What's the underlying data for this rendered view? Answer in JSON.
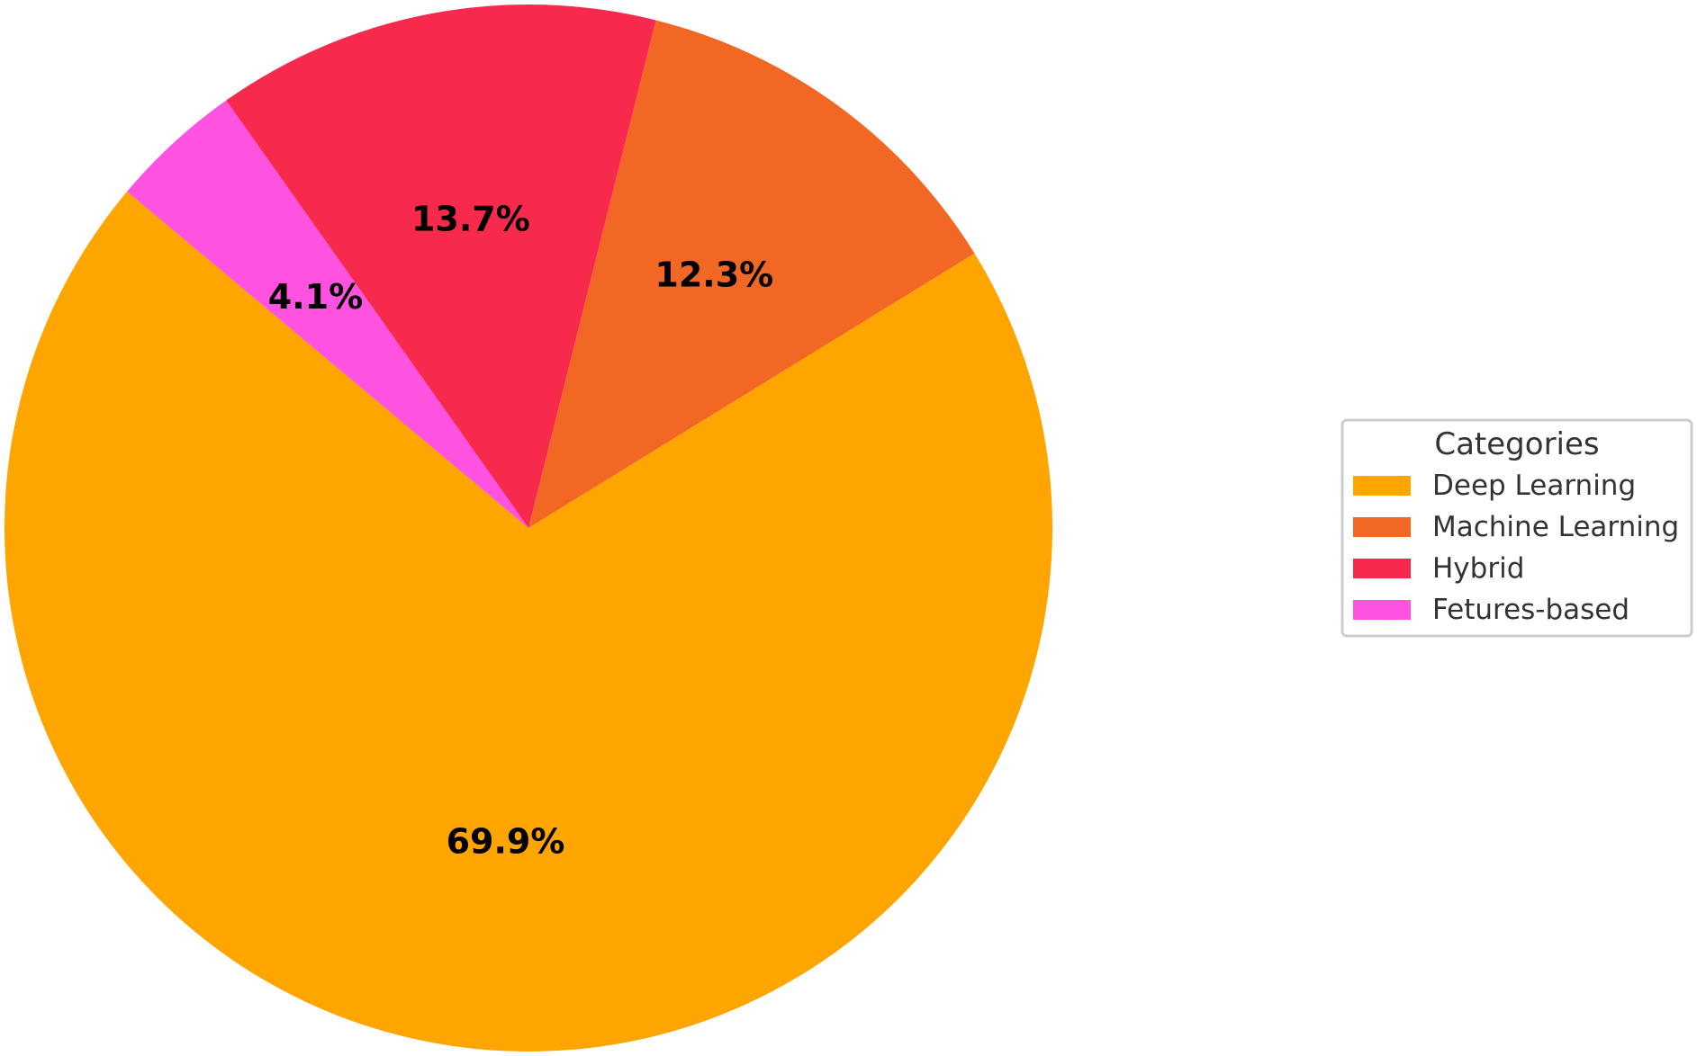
{
  "chart_data": {
    "type": "pie",
    "categories": [
      "Deep Learning",
      "Machine Learning",
      "Hybrid",
      "Fetures-based"
    ],
    "values": [
      69.9,
      12.3,
      13.7,
      4.1
    ],
    "value_labels": [
      "69.9%",
      "12.3%",
      "13.7%",
      "4.1%"
    ],
    "colors": [
      "#FFA500",
      "#F26724",
      "#F72A4E",
      "#FF52E1"
    ],
    "legend": {
      "title": "Categories",
      "placement": "right"
    }
  }
}
